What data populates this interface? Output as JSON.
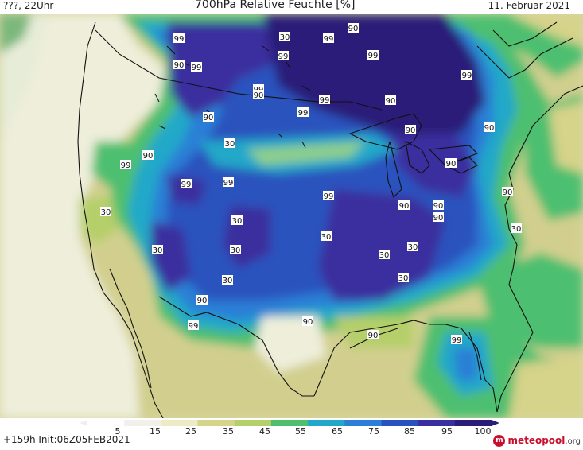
{
  "header": {
    "left": "???, 22Uhr",
    "title": "700hPa Relative Feuchte [%]",
    "date": "11. Februar 2021"
  },
  "footer": {
    "run_info": "+159h Init:06Z05FEB2021",
    "logo_text": "meteopool",
    "logo_tld": ".org"
  },
  "colorbar": {
    "ticks": [
      "5",
      "15",
      "25",
      "35",
      "45",
      "55",
      "65",
      "75",
      "85",
      "95",
      "100"
    ],
    "colors": [
      "#ffffff",
      "#f1f0ea",
      "#ecebc6",
      "#d6d38a",
      "#b5cf6b",
      "#4dbf6f",
      "#21a8c9",
      "#2b7fd6",
      "#2a52be",
      "#3a2f9e",
      "#2b1e78"
    ]
  },
  "labels": [
    {
      "text": "99"
    },
    {
      "text": "90"
    },
    {
      "text": "99"
    },
    {
      "text": "30"
    },
    {
      "text": "99"
    },
    {
      "text": "99"
    },
    {
      "text": "99"
    },
    {
      "text": "90"
    },
    {
      "text": "99"
    },
    {
      "text": "90"
    },
    {
      "text": "99"
    },
    {
      "text": "99"
    },
    {
      "text": "90"
    },
    {
      "text": "99"
    },
    {
      "text": "90"
    },
    {
      "text": "30"
    },
    {
      "text": "90"
    },
    {
      "text": "90"
    },
    {
      "text": "90"
    },
    {
      "text": "99"
    },
    {
      "text": "90"
    },
    {
      "text": "99"
    },
    {
      "text": "99"
    },
    {
      "text": "99"
    },
    {
      "text": "90"
    },
    {
      "text": "90"
    },
    {
      "text": "90"
    },
    {
      "text": "90"
    },
    {
      "text": "30"
    },
    {
      "text": "30"
    },
    {
      "text": "30"
    },
    {
      "text": "30"
    },
    {
      "text": "30"
    },
    {
      "text": "30"
    },
    {
      "text": "30"
    },
    {
      "text": "30"
    },
    {
      "text": "30"
    },
    {
      "text": "30"
    },
    {
      "text": "90"
    },
    {
      "text": "90"
    },
    {
      "text": "99"
    },
    {
      "text": "90"
    },
    {
      "text": "99"
    }
  ]
}
